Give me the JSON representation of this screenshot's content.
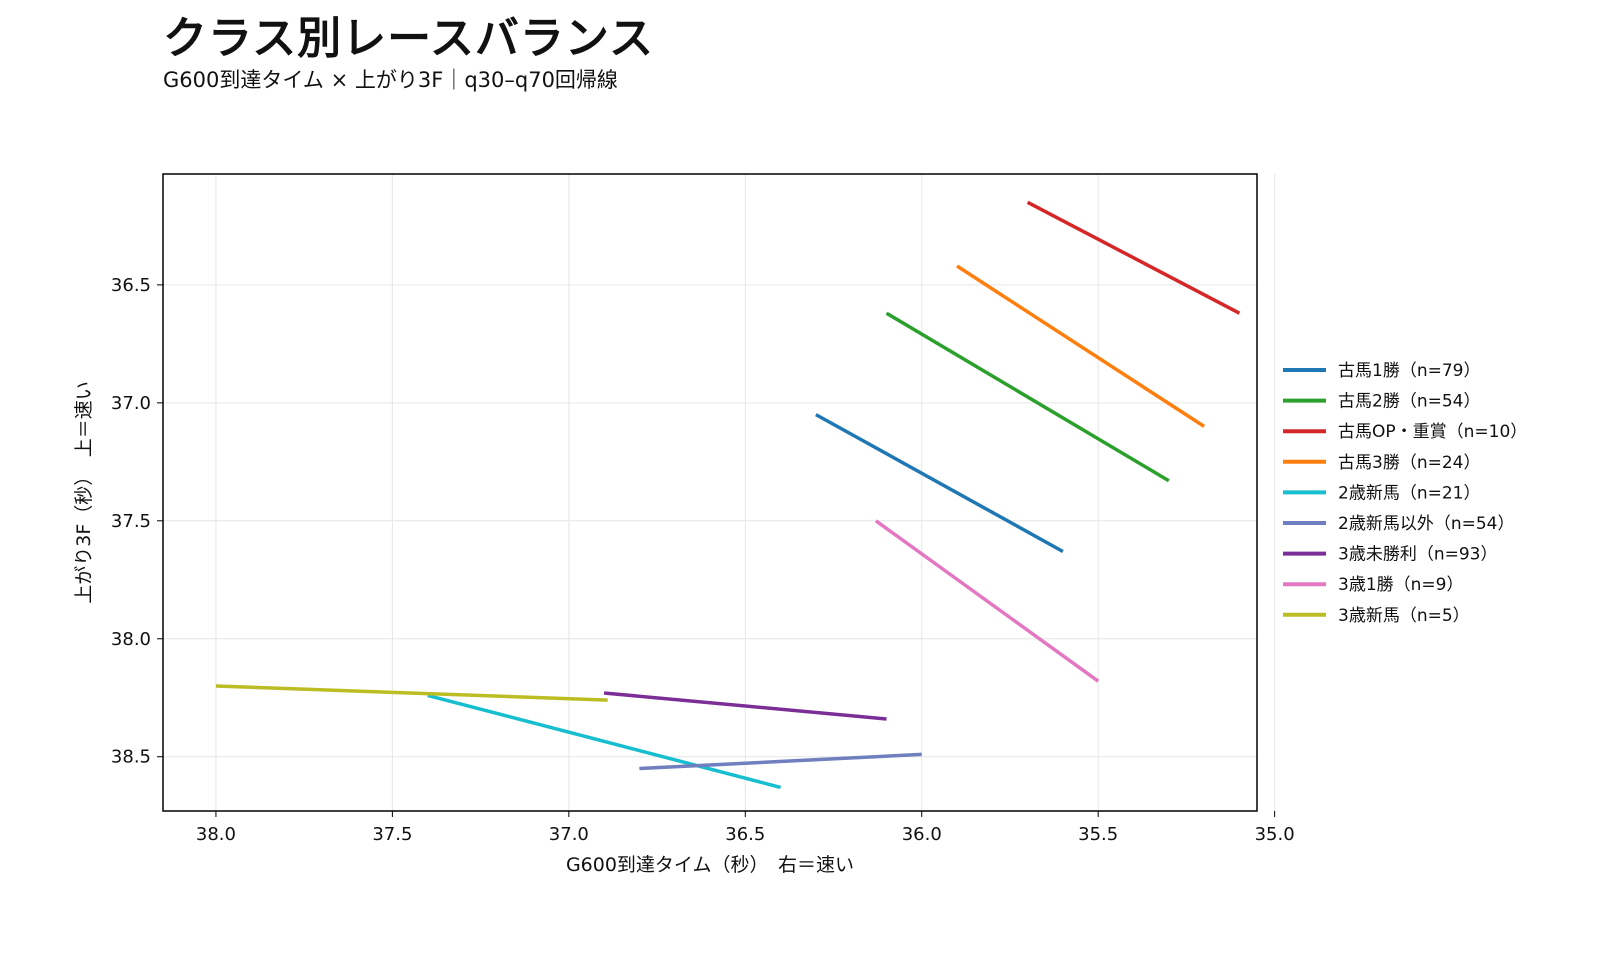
{
  "title": "クラス別レースバランス",
  "subtitle": "G600到達タイム × 上がり3F｜q30–q70回帰線",
  "chart_data": {
    "type": "line",
    "title": "クラス別レースバランス",
    "subtitle": "G600到達タイム × 上がり3F｜q30–q70回帰線",
    "xlabel": "G600到達タイム（秒）　右＝速い",
    "ylabel": "上がり3F（秒）　上＝速い",
    "xlim": [
      38.15,
      35.05
    ],
    "ylim": [
      38.73,
      36.03
    ],
    "x_inverted": true,
    "y_inverted": true,
    "xticks": [
      "38.0",
      "37.5",
      "37.0",
      "36.5",
      "36.0",
      "35.5",
      "35.0"
    ],
    "yticks": [
      "36.5",
      "37.0",
      "37.5",
      "38.0",
      "38.5"
    ],
    "grid": true,
    "legend_position": "right",
    "series": [
      {
        "name": "古馬1勝（n=79）",
        "color": "#1f77b4",
        "x": [
          36.3,
          35.6
        ],
        "y": [
          37.05,
          37.63
        ]
      },
      {
        "name": "古馬2勝（n=54）",
        "color": "#2ca02c",
        "x": [
          36.1,
          35.3
        ],
        "y": [
          36.62,
          37.33
        ]
      },
      {
        "name": "古馬OP・重賞（n=10）",
        "color": "#d62728",
        "x": [
          35.7,
          35.1
        ],
        "y": [
          36.15,
          36.62
        ]
      },
      {
        "name": "古馬3勝（n=24）",
        "color": "#ff7f0e",
        "x": [
          35.9,
          35.2
        ],
        "y": [
          36.42,
          37.1
        ]
      },
      {
        "name": "2歳新馬（n=21）",
        "color": "#17becf",
        "x": [
          37.4,
          36.4
        ],
        "y": [
          38.24,
          38.63
        ]
      },
      {
        "name": "2歳新馬以外（n=54）",
        "color": "#6f7fbf",
        "x": [
          36.8,
          36.0
        ],
        "y": [
          38.55,
          38.49
        ]
      },
      {
        "name": "3歳未勝利（n=93）",
        "color": "#7b2f96",
        "x": [
          36.9,
          36.1
        ],
        "y": [
          38.23,
          38.34
        ]
      },
      {
        "name": "3歳1勝（n=9）",
        "color": "#e377c2",
        "x": [
          36.13,
          35.5
        ],
        "y": [
          37.5,
          38.18
        ]
      },
      {
        "name": "3歳新馬（n=5）",
        "color": "#bcbd22",
        "x": [
          38.0,
          36.89
        ],
        "y": [
          38.2,
          38.26
        ]
      }
    ]
  }
}
